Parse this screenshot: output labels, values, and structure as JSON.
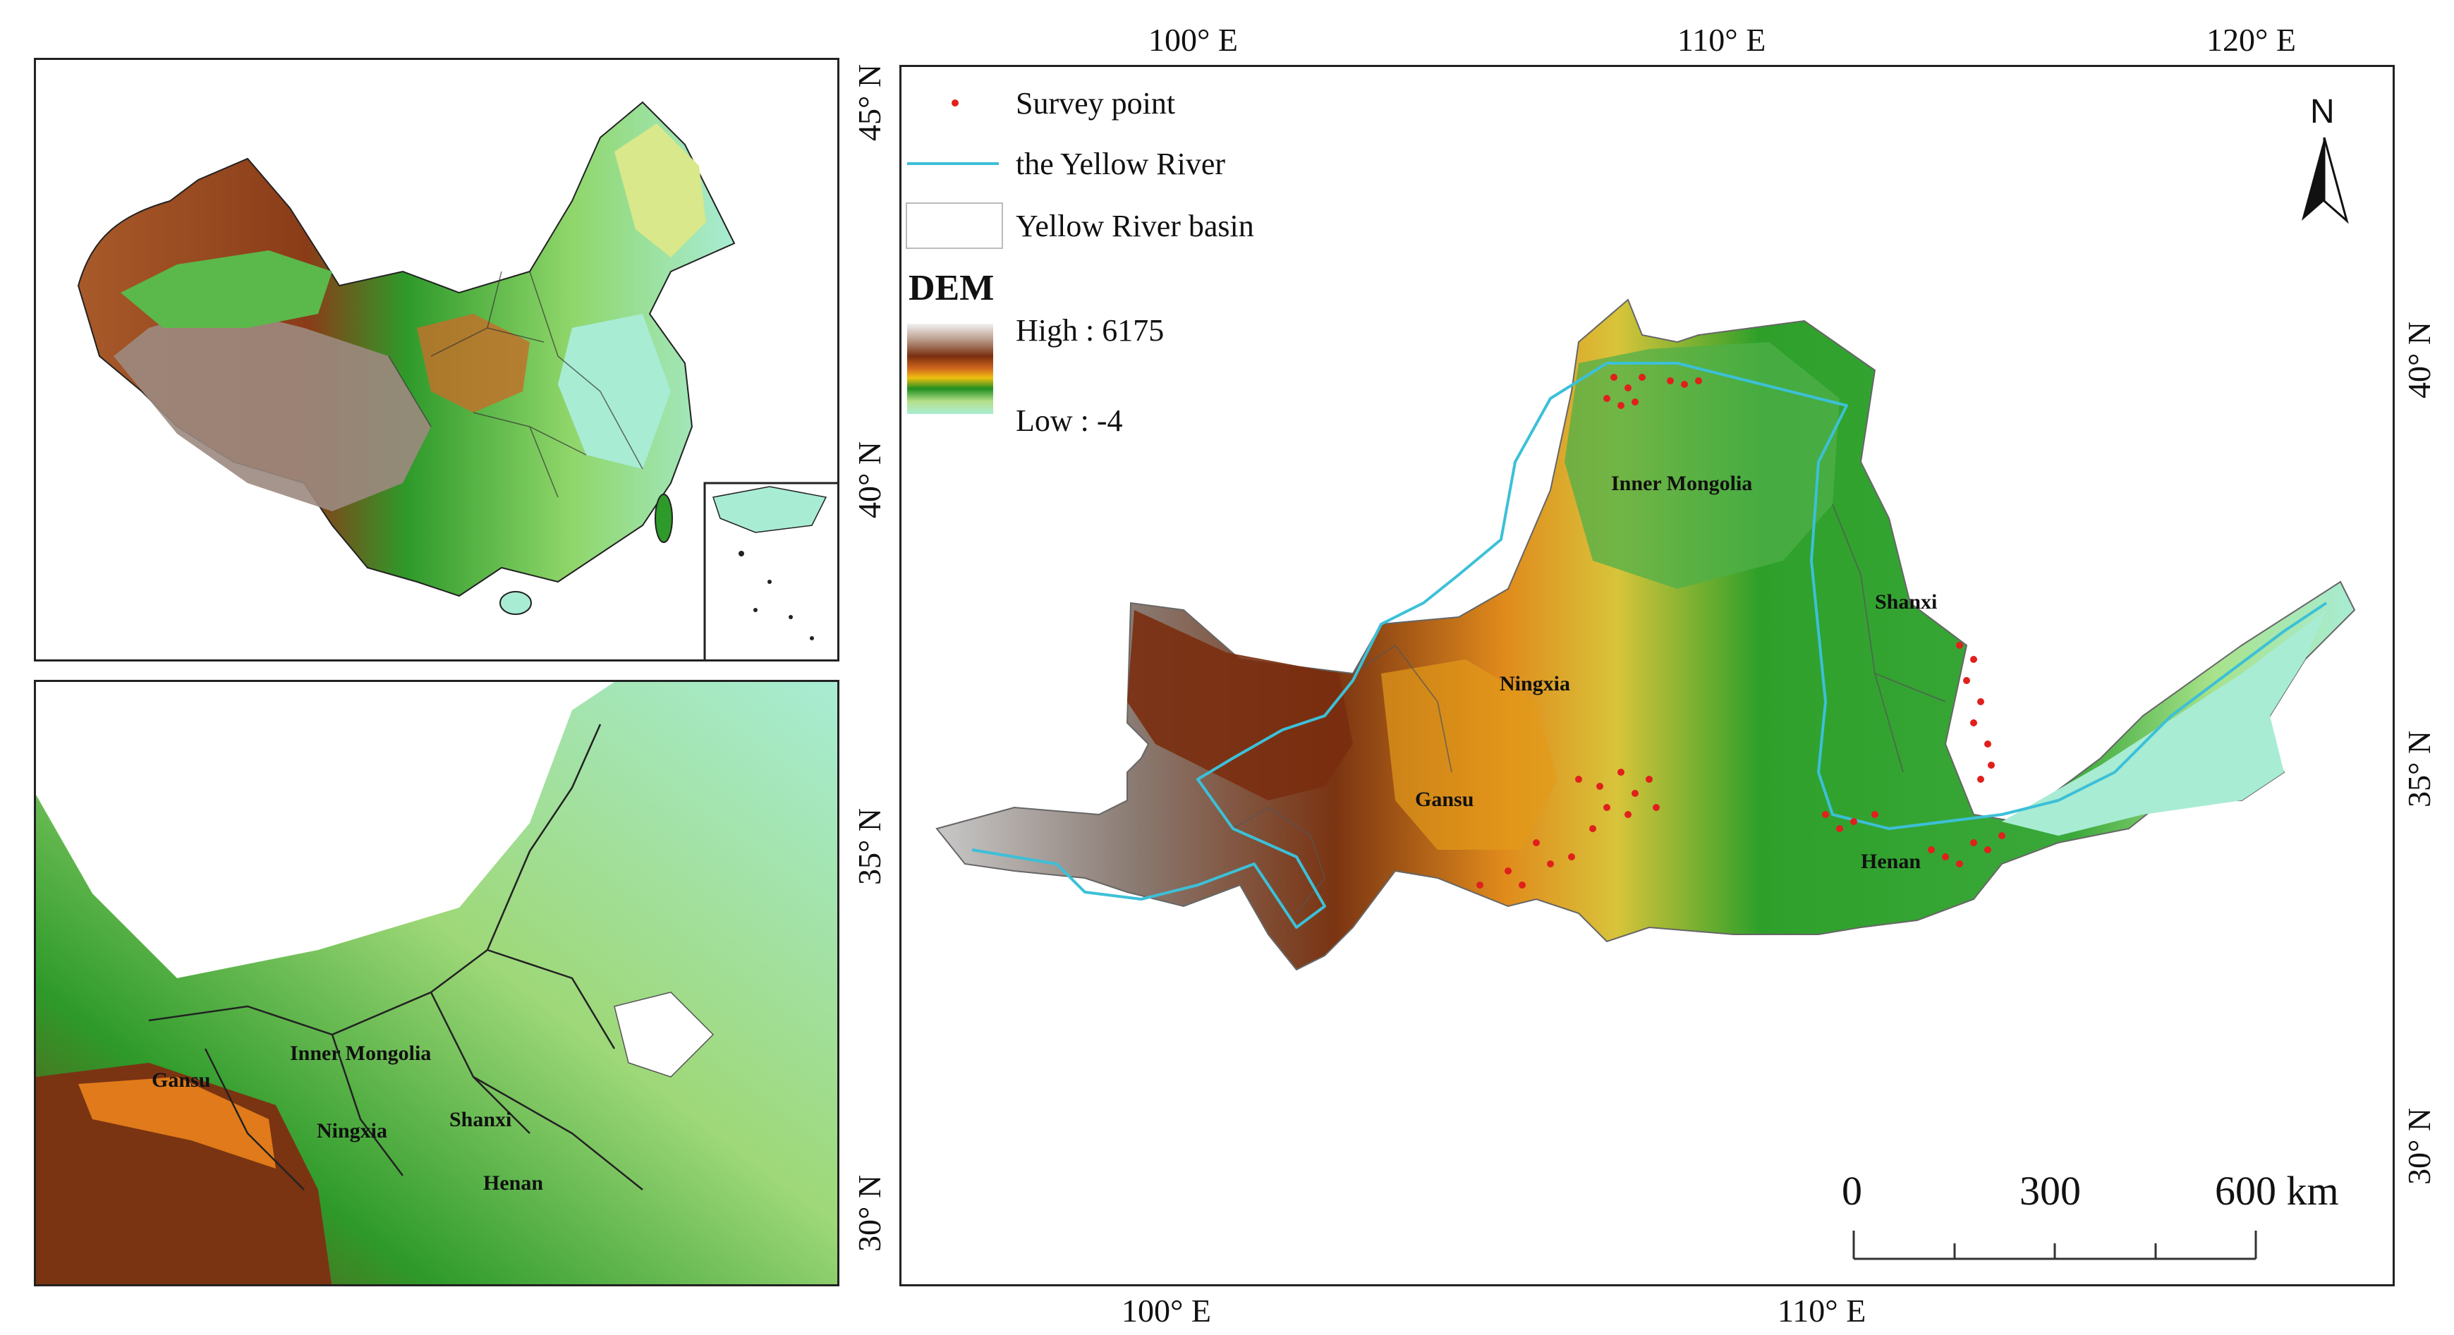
{
  "top_axis": {
    "e100": "100° E",
    "e110": "110° E",
    "e120": "120° E"
  },
  "bottom_axis": {
    "e100": "100° E",
    "e110": "110° E"
  },
  "left_axis": {
    "n45": "45° N",
    "n40": "40° N",
    "n35": "35° N",
    "n30": "30° N"
  },
  "right_axis": {
    "n40": "40° N",
    "n35": "35° N",
    "n30": "30° N"
  },
  "legend": {
    "survey_point": "Survey point",
    "yellow_river": "the Yellow River",
    "basin": "Yellow River basin",
    "dem_title": "DEM",
    "dem_high": "High : 6175",
    "dem_low": "Low : -4"
  },
  "north_arrow": "N",
  "scale_bar": {
    "l0": "0",
    "l300": "300",
    "l600": "600 km"
  },
  "main_map_labels": {
    "inner_mongolia": "Inner Mongolia",
    "shanxi": "Shanxi",
    "ningxia": "Ningxia",
    "gansu": "Gansu",
    "henan": "Henan"
  },
  "inset_labels": {
    "gansu": "Gansu",
    "inner_mongolia": "Inner Mongolia",
    "ningxia": "Ningxia",
    "shanxi": "Shanxi",
    "henan": "Henan"
  },
  "colors": {
    "river": "#3cc0d8",
    "survey_point": "#e0201c",
    "dem_high": "#7a2e10",
    "dem_mid": "#2ea02a",
    "dem_low": "#a8ecd4"
  }
}
